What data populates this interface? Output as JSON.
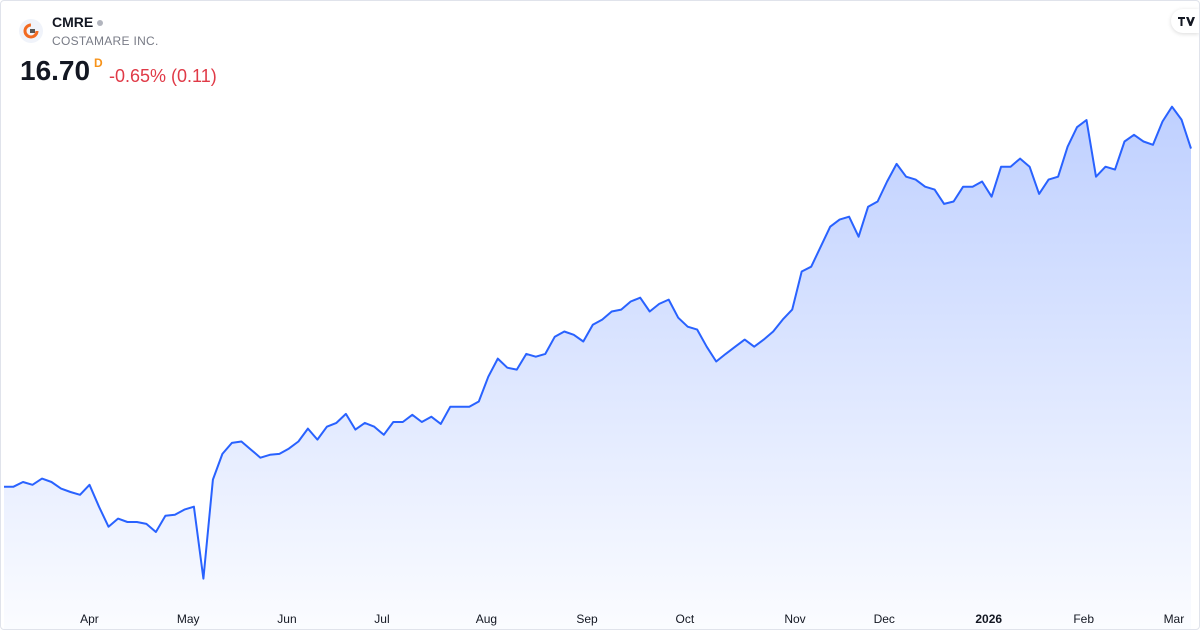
{
  "header": {
    "symbol": "CMRE",
    "name": "COSTAMARE INC.",
    "price": "16.70",
    "interval": "D",
    "change": "-0.65% (0.11)"
  },
  "chart_data": {
    "type": "area",
    "color": "#2962ff",
    "values": [
      9.6,
      9.6,
      9.7,
      9.64,
      9.77,
      9.7,
      9.56,
      9.49,
      9.43,
      9.64,
      9.18,
      8.76,
      8.93,
      8.86,
      8.86,
      8.82,
      8.65,
      8.99,
      9.01,
      9.12,
      9.18,
      7.67,
      9.75,
      10.29,
      10.52,
      10.55,
      10.38,
      10.21,
      10.27,
      10.29,
      10.4,
      10.55,
      10.82,
      10.59,
      10.86,
      10.94,
      11.13,
      10.8,
      10.94,
      10.86,
      10.69,
      10.96,
      10.96,
      11.11,
      10.96,
      11.07,
      10.92,
      11.28,
      11.28,
      11.28,
      11.39,
      11.91,
      12.29,
      12.1,
      12.06,
      12.39,
      12.33,
      12.39,
      12.75,
      12.86,
      12.79,
      12.65,
      13.0,
      13.11,
      13.28,
      13.32,
      13.49,
      13.57,
      13.28,
      13.44,
      13.53,
      13.15,
      12.96,
      12.9,
      12.54,
      12.23,
      12.39,
      12.54,
      12.69,
      12.54,
      12.69,
      12.86,
      13.11,
      13.32,
      14.12,
      14.22,
      14.64,
      15.06,
      15.21,
      15.27,
      14.85,
      15.48,
      15.59,
      16.01,
      16.38,
      16.11,
      16.05,
      15.9,
      15.84,
      15.54,
      15.59,
      15.9,
      15.9,
      16.01,
      15.69,
      16.32,
      16.32,
      16.49,
      16.32,
      15.75,
      16.05,
      16.11,
      16.74,
      17.15,
      17.3,
      16.11,
      16.32,
      16.26,
      16.85,
      16.99,
      16.85,
      16.78,
      17.27,
      17.58,
      17.31,
      16.7
    ],
    "ylim": [
      7.2,
      19.8
    ],
    "xlim": [
      0,
      125
    ],
    "xticks": [
      {
        "value": 9,
        "label": "Apr"
      },
      {
        "value": 19.4,
        "label": "May"
      },
      {
        "value": 29.8,
        "label": "Jun"
      },
      {
        "value": 39.8,
        "label": "Jul"
      },
      {
        "value": 50.8,
        "label": "Aug"
      },
      {
        "value": 61.4,
        "label": "Sep"
      },
      {
        "value": 71.7,
        "label": "Oct"
      },
      {
        "value": 83.3,
        "label": "Nov"
      },
      {
        "value": 92.7,
        "label": "Dec"
      },
      {
        "value": 103.7,
        "label": "2026"
      },
      {
        "value": 113.7,
        "label": "Feb"
      },
      {
        "value": 123.2,
        "label": "Mar"
      }
    ]
  }
}
